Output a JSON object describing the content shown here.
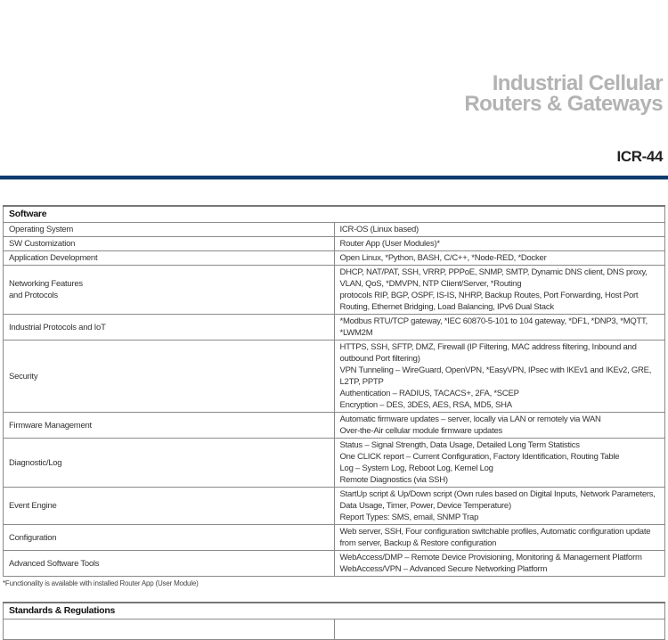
{
  "header": {
    "title_line1": "Industrial Cellular",
    "title_line2": "Routers & Gateways",
    "model": "ICR-44"
  },
  "software": {
    "heading": "Software",
    "rows": [
      {
        "label": "Operating System",
        "values": [
          "ICR-OS (Linux based)"
        ]
      },
      {
        "label": "SW Customization",
        "values": [
          "Router App (User Modules)*"
        ]
      },
      {
        "label": "Application Development",
        "values": [
          "Open Linux, *Python, BASH, C/C++, *Node-RED, *Docker"
        ]
      },
      {
        "label": "Networking Features and Protocols",
        "label_lines": [
          "Networking Features",
          "and Protocols"
        ],
        "values": [
          "DHCP, NAT/PAT, SSH, VRRP, PPPoE, SNMP, SMTP, Dynamic DNS client, DNS proxy, VLAN, QoS, *DMVPN, NTP Client/Server, *Routing",
          "protocols RIP, BGP, OSPF, IS-IS, NHRP, Backup Routes, Port Forwarding, Host Port Routing, Ethernet Bridging, Load Balancing, IPv6 Dual Stack"
        ]
      },
      {
        "label": "Industrial Protocols and IoT",
        "values": [
          "*Modbus RTU/TCP gateway, *IEC 60870-5-101 to 104 gateway, *DF1, *DNP3, *MQTT, *LWM2M"
        ]
      },
      {
        "label": "Security",
        "values": [
          "HTTPS, SSH, SFTP, DMZ, Firewall (IP Filtering, MAC address filtering, Inbound and outbound Port filtering)",
          "VPN Tunneling – WireGuard, OpenVPN, *EasyVPN, IPsec with IKEv1 and IKEv2, GRE, L2TP, PPTP",
          "Authentication – RADIUS, TACACS+, 2FA, *SCEP",
          "Encryption – DES, 3DES, AES, RSA, MD5, SHA"
        ]
      },
      {
        "label": "Firmware Management",
        "values": [
          "Automatic firmware updates – server, locally via LAN or remotely via WAN",
          "Over-the-Air cellular module firmware updates"
        ]
      },
      {
        "label": "Diagnostic/Log",
        "values": [
          "Status – Signal Strength, Data Usage, Detailed Long Term Statistics",
          "One CLICK report – Current Configuration, Factory Identification, Routing Table",
          "Log – System Log, Reboot Log, Kernel Log",
          "Remote Diagnostics (via SSH)"
        ]
      },
      {
        "label": "Event Engine",
        "values": [
          "StartUp script & Up/Down script (Own rules based on Digital Inputs, Network Parameters, Data Usage, Timer, Power, Device Temperature)",
          "Report Types: SMS, email, SNMP Trap"
        ]
      },
      {
        "label": "Configuration",
        "values": [
          "Web server, SSH, Four configuration switchable profiles, Automatic configuration update from server, Backup & Restore configuration"
        ]
      },
      {
        "label": "Advanced Software Tools",
        "values": [
          "WebAccess/DMP – Remote Device Provisioning, Monitoring & Management Platform",
          "WebAccess/VPN – Advanced Secure Networking Platform"
        ]
      }
    ],
    "footnote": "*Functionality is available with installed Router App (User Module)"
  },
  "standards": {
    "heading": "Standards & Regulations"
  },
  "colors": {
    "accent_rule": "#0d3c6e",
    "title_gray": "#b3b3b3"
  }
}
